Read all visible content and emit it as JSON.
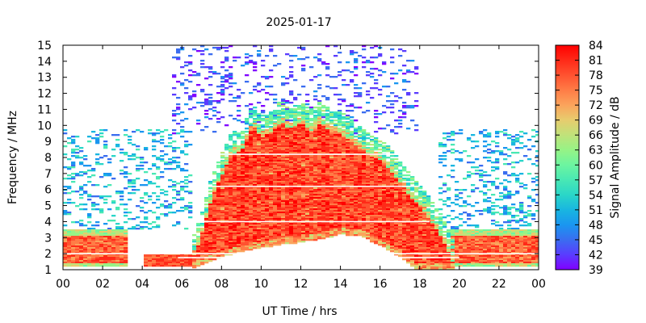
{
  "chart_data": {
    "type": "heatmap",
    "title": "2025-01-17",
    "xlabel": "UT Time / hrs",
    "ylabel": "Frequency / MHz",
    "colorbar_label": "Signal Amplitude / dB",
    "x_ticks": [
      "00",
      "02",
      "04",
      "06",
      "08",
      "10",
      "12",
      "14",
      "16",
      "18",
      "20",
      "22",
      "00"
    ],
    "xlim": [
      0,
      24
    ],
    "y_ticks": [
      "1",
      "2",
      "3",
      "4",
      "5",
      "6",
      "7",
      "8",
      "9",
      "10",
      "11",
      "12",
      "13",
      "14",
      "15"
    ],
    "ylim": [
      1,
      15
    ],
    "colorbar_ticks": [
      "39",
      "42",
      "45",
      "48",
      "51",
      "54",
      "57",
      "60",
      "63",
      "66",
      "69",
      "72",
      "75",
      "78",
      "81",
      "84"
    ],
    "colorbar_range": [
      39,
      84
    ],
    "colormap": [
      "#8000ff",
      "#5a3cff",
      "#3a6df0",
      "#1a96f0",
      "#19b6e0",
      "#2ad6c8",
      "#49e8b4",
      "#6cf5a0",
      "#96f386",
      "#c0e27a",
      "#e7cc6e",
      "#fba45c",
      "#ff7c46",
      "#ff5230",
      "#ff2a18",
      "#ff0000"
    ],
    "regions": [
      {
        "name": "daytime-high-absorption",
        "x_range": [
          6.5,
          19.5
        ],
        "peak_frequency_mhz": 11,
        "amplitude_db": 84
      },
      {
        "name": "night-low-band-left",
        "x_range": [
          0,
          3.3
        ],
        "frequency_range": [
          1.2,
          3.5
        ],
        "amplitude_db": 80
      },
      {
        "name": "night-low-band-right",
        "x_range": [
          19.5,
          24
        ],
        "frequency_range": [
          1.2,
          3.5
        ],
        "amplitude_db": 78
      },
      {
        "name": "sporadic-high-frequency",
        "x_range": [
          5.5,
          18
        ],
        "frequency_range": [
          9.5,
          15
        ],
        "amplitude_db": 42
      }
    ]
  }
}
